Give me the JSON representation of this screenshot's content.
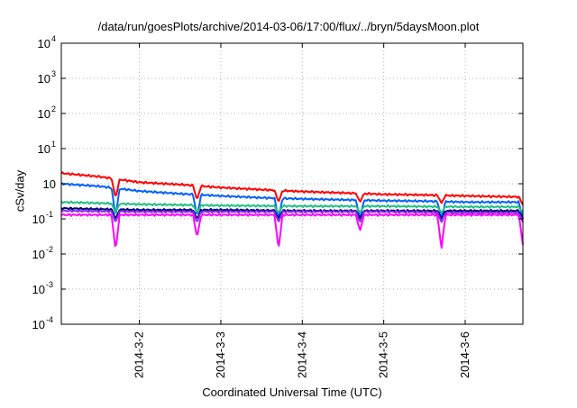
{
  "chart_data": {
    "type": "line",
    "title": "/data/run/goesPlots/archive/2014-03-06/17:00/flux/../bryn/5daysMoon.plot",
    "xlabel": "Coordinated Universal Time (UTC)",
    "ylabel": "cSv/day",
    "yscale": "log",
    "ylim": [
      0.0001,
      10000
    ],
    "y_ticks": [
      {
        "exp": "-4",
        "value": 0.0001
      },
      {
        "exp": "-3",
        "value": 0.001
      },
      {
        "exp": "-2",
        "value": 0.01
      },
      {
        "exp": "-1",
        "value": 0.1
      },
      {
        "exp": "",
        "value": 1
      },
      {
        "exp": "1",
        "value": 10
      },
      {
        "exp": "2",
        "value": 100
      },
      {
        "exp": "3",
        "value": 1000
      },
      {
        "exp": "4",
        "value": 10000
      }
    ],
    "y_tick_base": "10",
    "xlim": [
      "2014-03-01 01:00",
      "2014-03-06 17:00"
    ],
    "x_ticks": [
      {
        "label": "2014-3-2",
        "value": "2014-03-02 00:00"
      },
      {
        "label": "2014-3-3",
        "value": "2014-03-03 00:00"
      },
      {
        "label": "2014-3-4",
        "value": "2014-03-04 00:00"
      },
      {
        "label": "2014-3-5",
        "value": "2014-03-05 00:00"
      },
      {
        "label": "2014-3-6",
        "value": "2014-03-06 00:00"
      }
    ],
    "grid": true,
    "dip_times": [
      "2014-03-01 17:00",
      "2014-03-02 17:00",
      "2014-03-03 17:00",
      "2014-03-04 17:00",
      "2014-03-05 17:00",
      "2014-03-06 17:00"
    ],
    "series": [
      {
        "color": "#ff0000",
        "x": [
          "2014-03-01 01:00",
          "2014-03-01 12:00",
          "2014-03-02 00:00",
          "2014-03-02 12:00",
          "2014-03-03 00:00",
          "2014-03-03 12:00",
          "2014-03-04 00:00",
          "2014-03-04 12:00",
          "2014-03-05 00:00",
          "2014-03-05 12:00",
          "2014-03-06 00:00",
          "2014-03-06 17:00"
        ],
        "values": [
          2.0,
          1.6,
          1.1,
          0.95,
          0.78,
          0.68,
          0.6,
          0.55,
          0.5,
          0.48,
          0.45,
          0.42
        ],
        "dip_values": [
          0.4,
          0.35,
          0.3,
          0.3,
          0.28,
          0.25
        ]
      },
      {
        "color": "#0060ff",
        "x": [
          "2014-03-01 01:00",
          "2014-03-01 12:00",
          "2014-03-02 00:00",
          "2014-03-02 12:00",
          "2014-03-03 00:00",
          "2014-03-03 12:00",
          "2014-03-04 00:00",
          "2014-03-04 12:00",
          "2014-03-05 00:00",
          "2014-03-05 12:00",
          "2014-03-06 00:00",
          "2014-03-06 17:00"
        ],
        "values": [
          1.0,
          0.85,
          0.62,
          0.52,
          0.45,
          0.4,
          0.37,
          0.35,
          0.33,
          0.32,
          0.3,
          0.3
        ],
        "dip_values": [
          0.12,
          0.12,
          0.1,
          0.1,
          0.1,
          0.1
        ]
      },
      {
        "color": "#20c080",
        "x": [
          "2014-03-01 01:00",
          "2014-03-02 00:00",
          "2014-03-03 00:00",
          "2014-03-04 00:00",
          "2014-03-05 00:00",
          "2014-03-06 00:00",
          "2014-03-06 17:00"
        ],
        "values": [
          0.3,
          0.26,
          0.24,
          0.23,
          0.23,
          0.22,
          0.22
        ],
        "dip_values": [
          0.15,
          0.15,
          0.15,
          0.15,
          0.15,
          0.15
        ]
      },
      {
        "color": "#000080",
        "x": [
          "2014-03-01 01:00",
          "2014-03-02 00:00",
          "2014-03-03 00:00",
          "2014-03-04 00:00",
          "2014-03-05 00:00",
          "2014-03-06 00:00",
          "2014-03-06 17:00"
        ],
        "values": [
          0.2,
          0.18,
          0.18,
          0.17,
          0.17,
          0.17,
          0.17
        ],
        "dip_values": [
          0.1,
          0.1,
          0.1,
          0.1,
          0.1,
          0.1
        ]
      },
      {
        "color": "#8a2be2",
        "x": [
          "2014-03-01 01:00",
          "2014-03-02 00:00",
          "2014-03-03 00:00",
          "2014-03-04 00:00",
          "2014-03-05 00:00",
          "2014-03-06 00:00",
          "2014-03-06 17:00"
        ],
        "values": [
          0.17,
          0.16,
          0.16,
          0.16,
          0.16,
          0.15,
          0.15
        ],
        "dip_values": [
          0.08,
          0.08,
          0.08,
          0.08,
          0.08,
          0.08
        ]
      },
      {
        "color": "#ff00ff",
        "x": [
          "2014-03-01 01:00",
          "2014-03-02 00:00",
          "2014-03-03 00:00",
          "2014-03-04 00:00",
          "2014-03-05 00:00",
          "2014-03-06 00:00",
          "2014-03-06 17:00"
        ],
        "values": [
          0.13,
          0.13,
          0.13,
          0.13,
          0.13,
          0.13,
          0.13
        ],
        "dip_values": [
          0.013,
          0.03,
          0.014,
          0.045,
          0.014,
          0.018
        ]
      }
    ]
  }
}
